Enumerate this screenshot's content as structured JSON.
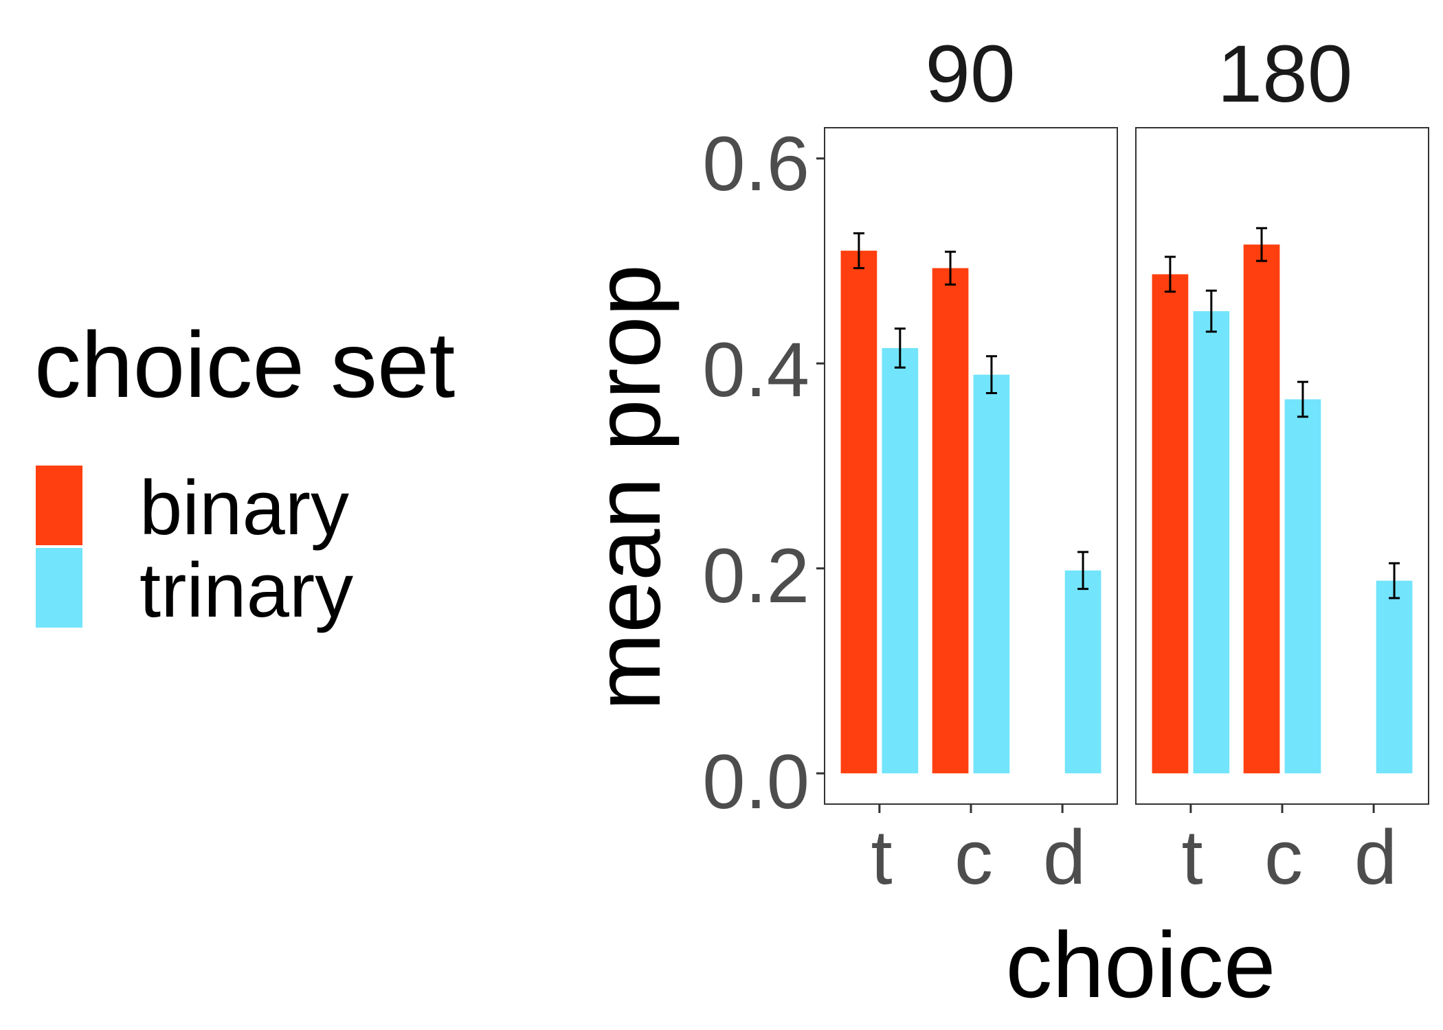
{
  "chart_data": {
    "type": "bar",
    "xlabel": "choice",
    "ylabel": "mean prop",
    "ylim": [
      -0.03,
      0.63
    ],
    "yticks": [
      "0.0",
      "0.2",
      "0.4",
      "0.6"
    ],
    "categories": [
      "t",
      "c",
      "d"
    ],
    "legend": {
      "title": "choice set",
      "placement": "left",
      "entries": [
        {
          "name": "binary",
          "color": "#FF3F0F"
        },
        {
          "name": "trinary",
          "color": "#72E4FC"
        }
      ]
    },
    "facets": [
      {
        "label": "90",
        "series": [
          {
            "name": "binary",
            "values": [
              0.51,
              0.493,
              null
            ],
            "error": [
              0.017,
              0.016,
              null
            ]
          },
          {
            "name": "trinary",
            "values": [
              0.415,
              0.389,
              0.198
            ],
            "error": [
              0.019,
              0.018,
              0.018
            ]
          }
        ]
      },
      {
        "label": "180",
        "series": [
          {
            "name": "binary",
            "values": [
              0.487,
              0.516,
              null
            ],
            "error": [
              0.017,
              0.016,
              null
            ]
          },
          {
            "name": "trinary",
            "values": [
              0.451,
              0.365,
              0.188
            ],
            "error": [
              0.02,
              0.017,
              0.017
            ]
          }
        ]
      }
    ],
    "grid": false
  }
}
